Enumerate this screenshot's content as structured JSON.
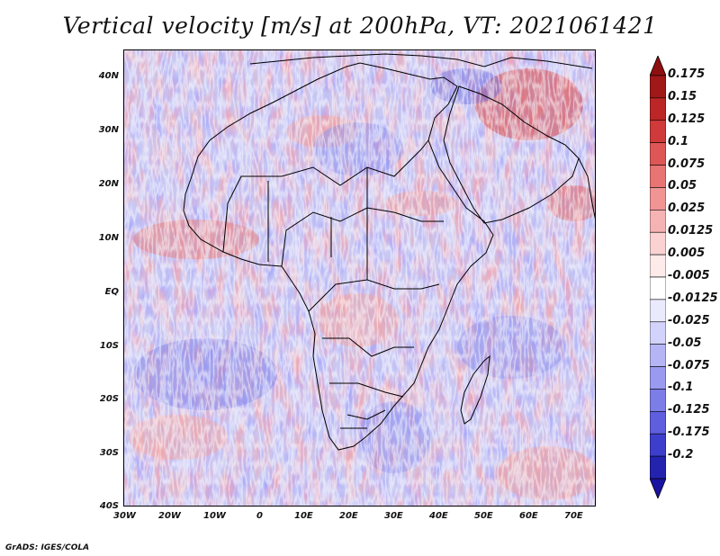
{
  "title": "Vertical velocity [m/s] at 200hPa, VT: 2021061421",
  "credit": "GrADS: IGES/COLA",
  "latitude_labels": [
    "40N",
    "30N",
    "20N",
    "10N",
    "EQ",
    "10S",
    "20S",
    "30S",
    "40S"
  ],
  "longitude_labels": [
    "30W",
    "20W",
    "10W",
    "0",
    "10E",
    "20E",
    "30E",
    "40E",
    "50E",
    "60E",
    "70E"
  ],
  "map_extent": {
    "lon_min": -30,
    "lon_max": 75,
    "lat_min": -40,
    "lat_max": 45
  },
  "colorbar": {
    "levels": [
      {
        "label": "0.175",
        "color": "#a01818"
      },
      {
        "label": "0.15",
        "color": "#bd2626"
      },
      {
        "label": "0.125",
        "color": "#d13a3a"
      },
      {
        "label": "0.1",
        "color": "#de5656"
      },
      {
        "label": "0.075",
        "color": "#e87474"
      },
      {
        "label": "0.05",
        "color": "#f09494"
      },
      {
        "label": "0.025",
        "color": "#f6b3b3"
      },
      {
        "label": "0.0125",
        "color": "#fad2d2"
      },
      {
        "label": "0.005",
        "color": "#fdeaea"
      },
      {
        "label": "-0.005",
        "color": "#ffffff"
      },
      {
        "label": "-0.0125",
        "color": "#eaeafd"
      },
      {
        "label": "-0.025",
        "color": "#d2d2fa"
      },
      {
        "label": "-0.05",
        "color": "#b5b5f5"
      },
      {
        "label": "-0.075",
        "color": "#9a9af0"
      },
      {
        "label": "-0.1",
        "color": "#7d7de8"
      },
      {
        "label": "-0.125",
        "color": "#5e5ede"
      },
      {
        "label": "-0.175",
        "color": "#3e3ecc"
      },
      {
        "label": "-0.2",
        "color": "#2323b0"
      }
    ],
    "top_color": "#8e0f0f",
    "bottom_color": "#1a12a0"
  },
  "colors": {
    "positive": "#e06060",
    "negative": "#6060e0",
    "coastline": "#000000"
  }
}
